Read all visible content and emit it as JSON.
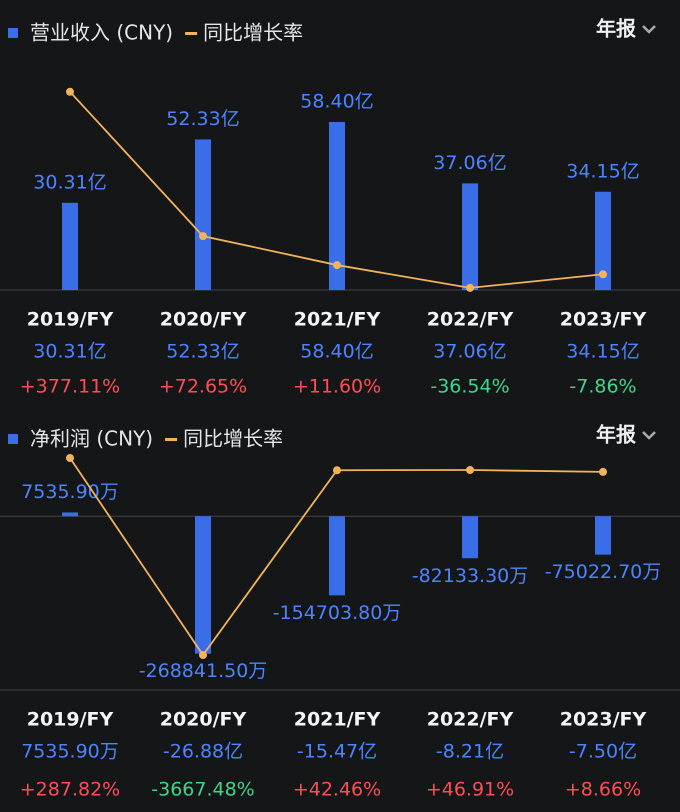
{
  "chart_data": [
    {
      "type": "bar",
      "period_label": "年报",
      "categories": [
        "2019/FY",
        "2020/FY",
        "2021/FY",
        "2022/FY",
        "2023/FY"
      ],
      "series": [
        {
          "name": "营业收入 (CNY)",
          "color": "#3a6ee8",
          "values": [
            30.31,
            52.33,
            58.4,
            37.06,
            34.15
          ],
          "value_labels": [
            "30.31亿",
            "52.33亿",
            "58.40亿",
            "37.06亿",
            "34.15亿"
          ]
        },
        {
          "name": "同比增长率",
          "type": "line",
          "axis": "y2",
          "color": "#f2b35b",
          "values": [
            377.11,
            72.65,
            11.6,
            -36.54,
            -7.86
          ],
          "value_labels": [
            "+377.11%",
            "+72.65%",
            "+11.60%",
            "-36.54%",
            "-7.86%"
          ]
        }
      ],
      "ylim": [
        0,
        73
      ],
      "y2lim": [
        -41,
        402
      ]
    },
    {
      "type": "bar",
      "period_label": "年报",
      "categories": [
        "2019/FY",
        "2020/FY",
        "2021/FY",
        "2022/FY",
        "2023/FY"
      ],
      "series": [
        {
          "name": "净利润 (CNY)",
          "color": "#3a6ee8",
          "values": [
            7535.9,
            -268841.5,
            -154703.8,
            -82133.3,
            -75022.7
          ],
          "value_labels": [
            "7535.90万",
            "-268841.50万",
            "-154703.80万",
            "-82133.30万",
            "-75022.70万"
          ],
          "summary_labels": [
            "7535.90万",
            "-26.88亿",
            "-15.47亿",
            "-8.21亿",
            "-7.50亿"
          ]
        },
        {
          "name": "同比增长率",
          "type": "line",
          "axis": "y2",
          "color": "#f2b35b",
          "values": [
            287.82,
            -3667.48,
            42.46,
            46.91,
            8.66
          ],
          "value_labels": [
            "+287.82%",
            "-3667.48%",
            "+42.46%",
            "+46.91%",
            "+8.66%"
          ]
        }
      ],
      "ylim": [
        -340000,
        120000
      ],
      "y2lim": [
        -4370,
        348
      ]
    }
  ]
}
